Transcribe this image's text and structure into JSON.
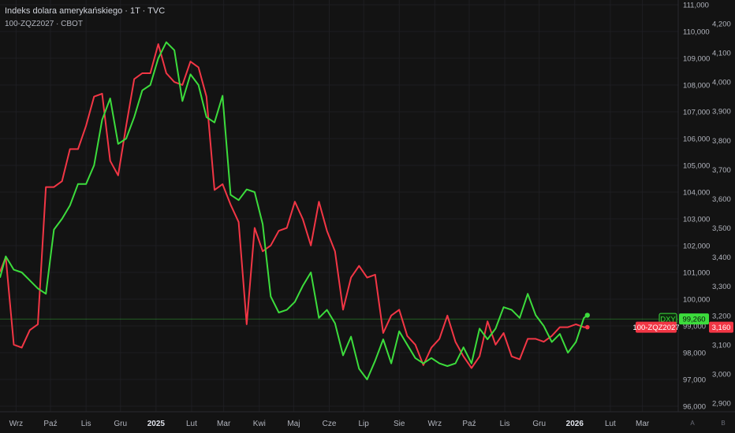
{
  "header": {
    "title": "Indeks dolara amerykańskiego · 1T · TVC",
    "subtitle": "100-ZQZ2027 · CBOT"
  },
  "colors": {
    "background": "#131313",
    "dxy": "#3cdc3c",
    "zq": "#f23645",
    "grid": "#1e1e22",
    "text": "#b2b5be"
  },
  "corner_buttons": [
    "A",
    "B"
  ],
  "chart_data": {
    "type": "line",
    "title": "Indeks dolara amerykańskiego · 1T · TVC",
    "grid": true,
    "x_ticks": [
      {
        "label": "Wrz",
        "date": "2024-09-01",
        "bold": false
      },
      {
        "label": "Paź",
        "date": "2024-10-01",
        "bold": false
      },
      {
        "label": "Lis",
        "date": "2024-11-01",
        "bold": false
      },
      {
        "label": "Gru",
        "date": "2024-12-01",
        "bold": false
      },
      {
        "label": "2025",
        "date": "2025-01-01",
        "bold": true
      },
      {
        "label": "Lut",
        "date": "2025-02-01",
        "bold": false
      },
      {
        "label": "Mar",
        "date": "2025-03-01",
        "bold": false
      },
      {
        "label": "Kwi",
        "date": "2025-04-01",
        "bold": false
      },
      {
        "label": "Maj",
        "date": "2025-05-01",
        "bold": false
      },
      {
        "label": "Cze",
        "date": "2025-06-01",
        "bold": false
      },
      {
        "label": "Lip",
        "date": "2025-07-01",
        "bold": false
      },
      {
        "label": "Sie",
        "date": "2025-08-01",
        "bold": false
      },
      {
        "label": "Wrz",
        "date": "2025-09-01",
        "bold": false
      },
      {
        "label": "Paź",
        "date": "2025-10-01",
        "bold": false
      },
      {
        "label": "Lis",
        "date": "2025-11-01",
        "bold": false
      },
      {
        "label": "Gru",
        "date": "2025-12-01",
        "bold": false
      },
      {
        "label": "2026",
        "date": "2026-01-01",
        "bold": true
      },
      {
        "label": "Lut",
        "date": "2026-02-01",
        "bold": false
      },
      {
        "label": "Mar",
        "date": "2026-03-01",
        "bold": false
      }
    ],
    "y_left": {
      "ticks": [
        "111,000",
        "110,000",
        "109,000",
        "108,000",
        "107,000",
        "106,000",
        "105,000",
        "104,000",
        "103,000",
        "102,000",
        "101,000",
        "100,000",
        "99,000",
        "98,000",
        "97,000",
        "96,000"
      ],
      "range": [
        96.0,
        111.0
      ]
    },
    "y_right": {
      "ticks": [
        "4,200",
        "4,100",
        "4,000",
        "3,900",
        "3,800",
        "3,700",
        "3,600",
        "3,500",
        "3,400",
        "3,300",
        "3,200",
        "3,100",
        "3,000",
        "2,900"
      ],
      "range": [
        2.87,
        4.26
      ]
    },
    "series": [
      {
        "name": "DXY",
        "axis": "left",
        "color": "#3cdc3c",
        "last_value_label": "99,260",
        "points": [
          [
            "2024-08-18",
            100.8
          ],
          [
            "2024-08-23",
            101.6
          ],
          [
            "2024-08-30",
            101.1
          ],
          [
            "2024-09-06",
            101.0
          ],
          [
            "2024-09-13",
            100.7
          ],
          [
            "2024-09-20",
            100.4
          ],
          [
            "2024-09-27",
            100.2
          ],
          [
            "2024-10-04",
            102.6
          ],
          [
            "2024-10-11",
            103.0
          ],
          [
            "2024-10-18",
            103.5
          ],
          [
            "2024-10-25",
            104.3
          ],
          [
            "2024-11-01",
            104.3
          ],
          [
            "2024-11-08",
            105.0
          ],
          [
            "2024-11-15",
            106.7
          ],
          [
            "2024-11-22",
            107.5
          ],
          [
            "2024-11-29",
            105.8
          ],
          [
            "2024-12-06",
            106.0
          ],
          [
            "2024-12-13",
            106.8
          ],
          [
            "2024-12-20",
            107.8
          ],
          [
            "2024-12-27",
            108.0
          ],
          [
            "2025-01-03",
            109.0
          ],
          [
            "2025-01-10",
            109.6
          ],
          [
            "2025-01-17",
            109.3
          ],
          [
            "2025-01-24",
            107.4
          ],
          [
            "2025-01-31",
            108.4
          ],
          [
            "2025-02-07",
            108.0
          ],
          [
            "2025-02-14",
            106.8
          ],
          [
            "2025-02-21",
            106.6
          ],
          [
            "2025-02-28",
            107.6
          ],
          [
            "2025-03-07",
            103.9
          ],
          [
            "2025-03-14",
            103.7
          ],
          [
            "2025-03-21",
            104.1
          ],
          [
            "2025-03-28",
            104.0
          ],
          [
            "2025-04-04",
            102.8
          ],
          [
            "2025-04-11",
            100.1
          ],
          [
            "2025-04-18",
            99.5
          ],
          [
            "2025-04-25",
            99.6
          ],
          [
            "2025-05-02",
            99.9
          ],
          [
            "2025-05-09",
            100.5
          ],
          [
            "2025-05-16",
            101.0
          ],
          [
            "2025-05-23",
            99.3
          ],
          [
            "2025-05-30",
            99.6
          ],
          [
            "2025-06-06",
            99.1
          ],
          [
            "2025-06-13",
            97.9
          ],
          [
            "2025-06-20",
            98.6
          ],
          [
            "2025-06-27",
            97.4
          ],
          [
            "2025-07-04",
            97.0
          ],
          [
            "2025-07-11",
            97.7
          ],
          [
            "2025-07-18",
            98.5
          ],
          [
            "2025-07-25",
            97.6
          ],
          [
            "2025-08-01",
            98.8
          ],
          [
            "2025-08-08",
            98.3
          ],
          [
            "2025-08-15",
            97.8
          ],
          [
            "2025-08-22",
            97.6
          ],
          [
            "2025-08-29",
            97.8
          ],
          [
            "2025-09-05",
            97.6
          ],
          [
            "2025-09-12",
            97.5
          ],
          [
            "2025-09-19",
            97.6
          ],
          [
            "2025-09-26",
            98.2
          ],
          [
            "2025-10-03",
            97.6
          ],
          [
            "2025-10-10",
            98.9
          ],
          [
            "2025-10-17",
            98.5
          ],
          [
            "2025-10-24",
            98.9
          ],
          [
            "2025-10-31",
            99.7
          ],
          [
            "2025-11-07",
            99.6
          ],
          [
            "2025-11-14",
            99.3
          ],
          [
            "2025-11-21",
            100.2
          ],
          [
            "2025-11-28",
            99.4
          ],
          [
            "2025-12-05",
            99.0
          ],
          [
            "2025-12-12",
            98.4
          ],
          [
            "2025-12-19",
            98.7
          ],
          [
            "2025-12-26",
            98.0
          ],
          [
            "2026-01-02",
            98.4
          ],
          [
            "2026-01-09",
            99.3
          ],
          [
            "2026-01-12",
            99.4
          ]
        ]
      },
      {
        "name": "100-ZQZ2027",
        "axis": "right",
        "color": "#f23645",
        "last_value_label": "3,160",
        "points": [
          [
            "2024-08-18",
            3.35
          ],
          [
            "2024-08-23",
            3.4
          ],
          [
            "2024-08-30",
            3.1
          ],
          [
            "2024-09-06",
            3.09
          ],
          [
            "2024-09-13",
            3.15
          ],
          [
            "2024-09-20",
            3.17
          ],
          [
            "2024-09-27",
            3.64
          ],
          [
            "2024-10-04",
            3.64
          ],
          [
            "2024-10-11",
            3.66
          ],
          [
            "2024-10-18",
            3.77
          ],
          [
            "2024-10-25",
            3.77
          ],
          [
            "2024-11-01",
            3.85
          ],
          [
            "2024-11-08",
            3.95
          ],
          [
            "2024-11-15",
            3.96
          ],
          [
            "2024-11-22",
            3.73
          ],
          [
            "2024-11-29",
            3.68
          ],
          [
            "2024-12-06",
            3.85
          ],
          [
            "2024-12-13",
            4.01
          ],
          [
            "2024-12-20",
            4.03
          ],
          [
            "2024-12-27",
            4.03
          ],
          [
            "2025-01-03",
            4.13
          ],
          [
            "2025-01-10",
            4.03
          ],
          [
            "2025-01-17",
            4.0
          ],
          [
            "2025-01-24",
            3.99
          ],
          [
            "2025-01-31",
            4.07
          ],
          [
            "2025-02-07",
            4.05
          ],
          [
            "2025-02-14",
            3.95
          ],
          [
            "2025-02-21",
            3.63
          ],
          [
            "2025-02-28",
            3.65
          ],
          [
            "2025-03-07",
            3.58
          ],
          [
            "2025-03-14",
            3.52
          ],
          [
            "2025-03-21",
            3.17
          ],
          [
            "2025-03-28",
            3.5
          ],
          [
            "2025-04-04",
            3.42
          ],
          [
            "2025-04-11",
            3.44
          ],
          [
            "2025-04-18",
            3.49
          ],
          [
            "2025-04-25",
            3.5
          ],
          [
            "2025-05-02",
            3.59
          ],
          [
            "2025-05-09",
            3.53
          ],
          [
            "2025-05-16",
            3.44
          ],
          [
            "2025-05-23",
            3.59
          ],
          [
            "2025-05-30",
            3.49
          ],
          [
            "2025-06-06",
            3.42
          ],
          [
            "2025-06-13",
            3.22
          ],
          [
            "2025-06-20",
            3.33
          ],
          [
            "2025-06-27",
            3.37
          ],
          [
            "2025-07-04",
            3.33
          ],
          [
            "2025-07-11",
            3.34
          ],
          [
            "2025-07-18",
            3.14
          ],
          [
            "2025-07-25",
            3.2
          ],
          [
            "2025-08-01",
            3.22
          ],
          [
            "2025-08-08",
            3.13
          ],
          [
            "2025-08-15",
            3.1
          ],
          [
            "2025-08-22",
            3.03
          ],
          [
            "2025-08-29",
            3.09
          ],
          [
            "2025-09-05",
            3.12
          ],
          [
            "2025-09-12",
            3.2
          ],
          [
            "2025-09-19",
            3.11
          ],
          [
            "2025-09-26",
            3.06
          ],
          [
            "2025-10-03",
            3.02
          ],
          [
            "2025-10-10",
            3.06
          ],
          [
            "2025-10-17",
            3.18
          ],
          [
            "2025-10-24",
            3.1
          ],
          [
            "2025-10-31",
            3.14
          ],
          [
            "2025-11-07",
            3.06
          ],
          [
            "2025-11-14",
            3.05
          ],
          [
            "2025-11-21",
            3.12
          ],
          [
            "2025-11-28",
            3.12
          ],
          [
            "2025-12-05",
            3.11
          ],
          [
            "2025-12-12",
            3.13
          ],
          [
            "2025-12-19",
            3.16
          ],
          [
            "2025-12-26",
            3.16
          ],
          [
            "2026-01-02",
            3.17
          ],
          [
            "2026-01-09",
            3.16
          ],
          [
            "2026-01-12",
            3.16
          ]
        ]
      }
    ],
    "reference_line": {
      "series": "DXY",
      "value": 99.26
    }
  }
}
